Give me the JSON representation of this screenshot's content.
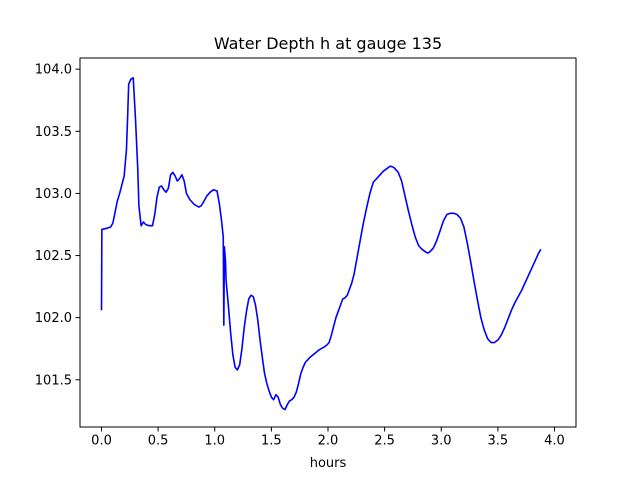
{
  "chart_data": {
    "type": "line",
    "title": "Water Depth h at gauge 135",
    "xlabel": "hours",
    "ylabel": "",
    "xlim": [
      -0.19,
      4.19
    ],
    "ylim": [
      101.12,
      104.09
    ],
    "x_ticks": [
      0.0,
      0.5,
      1.0,
      1.5,
      2.0,
      2.5,
      3.0,
      3.5,
      4.0
    ],
    "x_tick_labels": [
      "0.0",
      "0.5",
      "1.0",
      "1.5",
      "2.0",
      "2.5",
      "3.0",
      "3.5",
      "4.0"
    ],
    "y_ticks": [
      101.5,
      102.0,
      102.5,
      103.0,
      103.5,
      104.0
    ],
    "y_tick_labels": [
      "101.5",
      "102.0",
      "102.5",
      "103.0",
      "103.5",
      "104.0"
    ],
    "grid": false,
    "legend": "none",
    "series": [
      {
        "color": "#0000ff",
        "points": [
          [
            0.0,
            102.06
          ],
          [
            0.003,
            102.71
          ],
          [
            0.05,
            102.72
          ],
          [
            0.08,
            102.73
          ],
          [
            0.1,
            102.76
          ],
          [
            0.12,
            102.85
          ],
          [
            0.14,
            102.94
          ],
          [
            0.16,
            103.0
          ],
          [
            0.18,
            103.07
          ],
          [
            0.2,
            103.14
          ],
          [
            0.22,
            103.35
          ],
          [
            0.23,
            103.6
          ],
          [
            0.24,
            103.88
          ],
          [
            0.26,
            103.92
          ],
          [
            0.28,
            103.93
          ],
          [
            0.3,
            103.6
          ],
          [
            0.32,
            103.2
          ],
          [
            0.33,
            102.9
          ],
          [
            0.35,
            102.74
          ],
          [
            0.37,
            102.77
          ],
          [
            0.39,
            102.75
          ],
          [
            0.42,
            102.74
          ],
          [
            0.45,
            102.74
          ],
          [
            0.47,
            102.83
          ],
          [
            0.49,
            102.97
          ],
          [
            0.51,
            103.05
          ],
          [
            0.53,
            103.06
          ],
          [
            0.55,
            103.03
          ],
          [
            0.57,
            103.01
          ],
          [
            0.59,
            103.04
          ],
          [
            0.61,
            103.15
          ],
          [
            0.63,
            103.17
          ],
          [
            0.65,
            103.14
          ],
          [
            0.67,
            103.1
          ],
          [
            0.69,
            103.12
          ],
          [
            0.71,
            103.15
          ],
          [
            0.73,
            103.1
          ],
          [
            0.75,
            103.0
          ],
          [
            0.78,
            102.95
          ],
          [
            0.82,
            102.91
          ],
          [
            0.86,
            102.89
          ],
          [
            0.88,
            102.9
          ],
          [
            0.9,
            102.93
          ],
          [
            0.93,
            102.98
          ],
          [
            0.96,
            103.01
          ],
          [
            0.99,
            103.03
          ],
          [
            1.02,
            103.02
          ],
          [
            1.04,
            102.92
          ],
          [
            1.06,
            102.78
          ],
          [
            1.075,
            102.65
          ],
          [
            1.08,
            101.94
          ],
          [
            1.085,
            102.57
          ],
          [
            1.095,
            102.45
          ],
          [
            1.1,
            102.3
          ],
          [
            1.12,
            102.1
          ],
          [
            1.14,
            101.88
          ],
          [
            1.16,
            101.7
          ],
          [
            1.18,
            101.6
          ],
          [
            1.2,
            101.58
          ],
          [
            1.22,
            101.62
          ],
          [
            1.24,
            101.75
          ],
          [
            1.26,
            101.92
          ],
          [
            1.28,
            102.05
          ],
          [
            1.3,
            102.15
          ],
          [
            1.32,
            102.18
          ],
          [
            1.34,
            102.17
          ],
          [
            1.36,
            102.1
          ],
          [
            1.38,
            101.98
          ],
          [
            1.4,
            101.82
          ],
          [
            1.42,
            101.68
          ],
          [
            1.44,
            101.55
          ],
          [
            1.46,
            101.47
          ],
          [
            1.48,
            101.41
          ],
          [
            1.5,
            101.36
          ],
          [
            1.52,
            101.34
          ],
          [
            1.54,
            101.38
          ],
          [
            1.56,
            101.36
          ],
          [
            1.58,
            101.3
          ],
          [
            1.6,
            101.27
          ],
          [
            1.62,
            101.26
          ],
          [
            1.64,
            101.3
          ],
          [
            1.66,
            101.33
          ],
          [
            1.68,
            101.34
          ],
          [
            1.7,
            101.36
          ],
          [
            1.72,
            101.4
          ],
          [
            1.74,
            101.47
          ],
          [
            1.76,
            101.55
          ],
          [
            1.78,
            101.6
          ],
          [
            1.8,
            101.64
          ],
          [
            1.84,
            101.68
          ],
          [
            1.88,
            101.71
          ],
          [
            1.92,
            101.74
          ],
          [
            1.96,
            101.76
          ],
          [
            1.99,
            101.78
          ],
          [
            2.01,
            101.8
          ],
          [
            2.03,
            101.86
          ],
          [
            2.05,
            101.93
          ],
          [
            2.07,
            102.0
          ],
          [
            2.09,
            102.05
          ],
          [
            2.11,
            102.1
          ],
          [
            2.13,
            102.15
          ],
          [
            2.15,
            102.16
          ],
          [
            2.17,
            102.18
          ],
          [
            2.19,
            102.23
          ],
          [
            2.21,
            102.28
          ],
          [
            2.23,
            102.35
          ],
          [
            2.25,
            102.45
          ],
          [
            2.28,
            102.6
          ],
          [
            2.31,
            102.75
          ],
          [
            2.34,
            102.88
          ],
          [
            2.37,
            103.0
          ],
          [
            2.4,
            103.09
          ],
          [
            2.43,
            103.12
          ],
          [
            2.46,
            103.15
          ],
          [
            2.49,
            103.18
          ],
          [
            2.52,
            103.2
          ],
          [
            2.55,
            103.22
          ],
          [
            2.58,
            103.21
          ],
          [
            2.6,
            103.19
          ],
          [
            2.62,
            103.17
          ],
          [
            2.65,
            103.1
          ],
          [
            2.68,
            102.98
          ],
          [
            2.71,
            102.86
          ],
          [
            2.74,
            102.75
          ],
          [
            2.77,
            102.65
          ],
          [
            2.8,
            102.58
          ],
          [
            2.83,
            102.55
          ],
          [
            2.86,
            102.53
          ],
          [
            2.88,
            102.52
          ],
          [
            2.9,
            102.53
          ],
          [
            2.93,
            102.56
          ],
          [
            2.96,
            102.62
          ],
          [
            2.99,
            102.7
          ],
          [
            3.02,
            102.78
          ],
          [
            3.05,
            102.83
          ],
          [
            3.08,
            102.84
          ],
          [
            3.11,
            102.84
          ],
          [
            3.14,
            102.83
          ],
          [
            3.17,
            102.8
          ],
          [
            3.2,
            102.73
          ],
          [
            3.23,
            102.6
          ],
          [
            3.26,
            102.45
          ],
          [
            3.29,
            102.29
          ],
          [
            3.32,
            102.14
          ],
          [
            3.35,
            102.0
          ],
          [
            3.38,
            101.9
          ],
          [
            3.41,
            101.83
          ],
          [
            3.44,
            101.8
          ],
          [
            3.47,
            101.8
          ],
          [
            3.5,
            101.82
          ],
          [
            3.53,
            101.86
          ],
          [
            3.56,
            101.92
          ],
          [
            3.59,
            101.99
          ],
          [
            3.62,
            102.06
          ],
          [
            3.65,
            102.12
          ],
          [
            3.68,
            102.17
          ],
          [
            3.71,
            102.22
          ],
          [
            3.74,
            102.28
          ],
          [
            3.77,
            102.34
          ],
          [
            3.8,
            102.4
          ],
          [
            3.83,
            102.46
          ],
          [
            3.86,
            102.52
          ],
          [
            3.88,
            102.55
          ]
        ]
      }
    ]
  }
}
